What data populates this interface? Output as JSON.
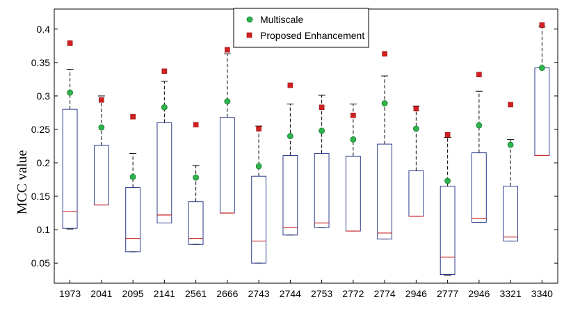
{
  "chart_data": {
    "type": "box",
    "ylabel": "MCC value",
    "xlabel": "",
    "ylim": [
      0.02,
      0.43
    ],
    "yticks": [
      0.05,
      0.1,
      0.15,
      0.2,
      0.25,
      0.3,
      0.35,
      0.4
    ],
    "ytick_labels": [
      "0.05",
      "0.1",
      "0.15",
      "0.2",
      "0.25",
      "0.3",
      "0.35",
      "0.4"
    ],
    "categories": [
      "1973",
      "2041",
      "2095",
      "2141",
      "2561",
      "2666",
      "2743",
      "2744",
      "2753",
      "2772",
      "2774",
      "2946",
      "2777",
      "2946",
      "3321",
      "3340"
    ],
    "boxes": [
      {
        "whisker_low": 0.101,
        "q1": 0.102,
        "median": 0.127,
        "q3": 0.28,
        "whisker_high": 0.34
      },
      {
        "whisker_low": 0.137,
        "q1": 0.137,
        "median": 0.137,
        "q3": 0.226,
        "whisker_high": 0.3
      },
      {
        "whisker_low": 0.067,
        "q1": 0.067,
        "median": 0.087,
        "q3": 0.163,
        "whisker_high": 0.214
      },
      {
        "whisker_low": 0.11,
        "q1": 0.11,
        "median": 0.122,
        "q3": 0.26,
        "whisker_high": 0.322
      },
      {
        "whisker_low": 0.078,
        "q1": 0.078,
        "median": 0.087,
        "q3": 0.142,
        "whisker_high": 0.196
      },
      {
        "whisker_low": 0.125,
        "q1": 0.125,
        "median": 0.125,
        "q3": 0.268,
        "whisker_high": 0.363
      },
      {
        "whisker_low": 0.05,
        "q1": 0.05,
        "median": 0.083,
        "q3": 0.18,
        "whisker_high": 0.255
      },
      {
        "whisker_low": 0.092,
        "q1": 0.092,
        "median": 0.103,
        "q3": 0.211,
        "whisker_high": 0.288
      },
      {
        "whisker_low": 0.103,
        "q1": 0.103,
        "median": 0.11,
        "q3": 0.214,
        "whisker_high": 0.301
      },
      {
        "whisker_low": 0.098,
        "q1": 0.098,
        "median": 0.098,
        "q3": 0.21,
        "whisker_high": 0.288
      },
      {
        "whisker_low": 0.086,
        "q1": 0.086,
        "median": 0.095,
        "q3": 0.228,
        "whisker_high": 0.33
      },
      {
        "whisker_low": 0.12,
        "q1": 0.12,
        "median": 0.12,
        "q3": 0.188,
        "whisker_high": 0.285
      },
      {
        "whisker_low": 0.032,
        "q1": 0.033,
        "median": 0.059,
        "q3": 0.165,
        "whisker_high": 0.238
      },
      {
        "whisker_low": 0.111,
        "q1": 0.111,
        "median": 0.117,
        "q3": 0.215,
        "whisker_high": 0.307
      },
      {
        "whisker_low": 0.083,
        "q1": 0.083,
        "median": 0.089,
        "q3": 0.165,
        "whisker_high": 0.235
      },
      {
        "whisker_low": 0.211,
        "q1": 0.211,
        "median": 0.211,
        "q3": 0.342,
        "whisker_high": 0.404
      }
    ],
    "series": [
      {
        "name": "Multiscale",
        "marker": "circle",
        "color": "#2db34a",
        "values": [
          0.305,
          0.253,
          0.179,
          0.283,
          0.178,
          0.292,
          0.195,
          0.24,
          0.248,
          0.235,
          0.289,
          0.251,
          0.173,
          0.256,
          0.227,
          0.342
        ]
      },
      {
        "name": "Proposed Enhancement",
        "marker": "square",
        "color": "#d42020",
        "values": [
          0.379,
          0.294,
          0.269,
          0.337,
          0.257,
          0.369,
          0.251,
          0.316,
          0.283,
          0.271,
          0.363,
          0.281,
          0.242,
          0.332,
          0.287,
          0.406
        ]
      }
    ],
    "box_color": "#2b3a8c",
    "median_color": "#cc2b2b",
    "whisker_color": "#000000",
    "legend_position": "top-center",
    "grid": false
  }
}
